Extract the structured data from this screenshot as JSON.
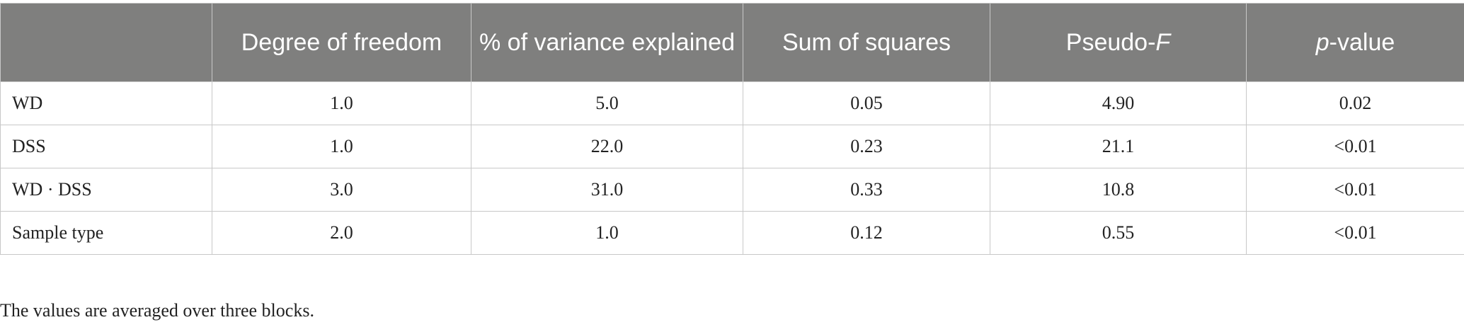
{
  "table": {
    "header": [
      [],
      [
        {
          "text": "Degree of freedom"
        }
      ],
      [
        {
          "text": "% of variance explained"
        }
      ],
      [
        {
          "text": "Sum of squares"
        }
      ],
      [
        {
          "text": "Pseudo-"
        },
        {
          "text": "F",
          "italic": true
        }
      ],
      [
        {
          "text": "p",
          "italic": true
        },
        {
          "text": "-value"
        }
      ]
    ],
    "rows": [
      [
        "WD",
        "1.0",
        "5.0",
        "0.05",
        "4.90",
        "0.02"
      ],
      [
        "DSS",
        "1.0",
        "22.0",
        "0.23",
        "21.1",
        "<0.01"
      ],
      [
        "WD · DSS",
        "3.0",
        "31.0",
        "0.33",
        "10.8",
        "<0.01"
      ],
      [
        "Sample type",
        "2.0",
        "1.0",
        "0.12",
        "0.55",
        "<0.01"
      ]
    ]
  },
  "footnote": "The values are averaged over three blocks."
}
